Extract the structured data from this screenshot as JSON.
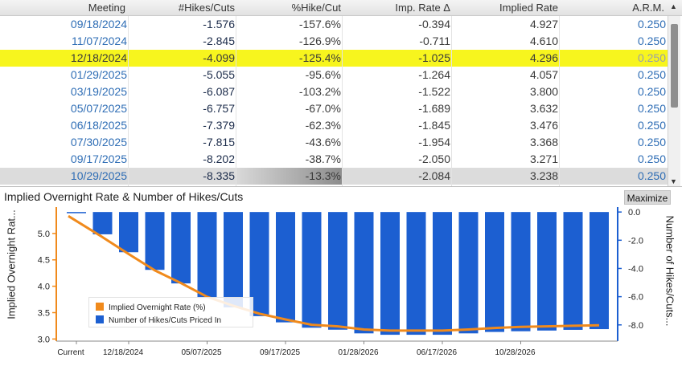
{
  "table": {
    "columns": [
      "Meeting",
      "#Hikes/Cuts",
      "%Hike/Cut",
      "Imp. Rate Δ",
      "Implied Rate",
      "A.R.M."
    ],
    "rows": [
      {
        "meeting": "09/18/2024",
        "hikes": "-1.576",
        "pct": "-157.6%",
        "imp": "-0.394",
        "rate": "4.927",
        "arm": "0.250"
      },
      {
        "meeting": "11/07/2024",
        "hikes": "-2.845",
        "pct": "-126.9%",
        "imp": "-0.711",
        "rate": "4.610",
        "arm": "0.250"
      },
      {
        "meeting": "12/18/2024",
        "hikes": "-4.099",
        "pct": "-125.4%",
        "imp": "-1.025",
        "rate": "4.296",
        "arm": "0.250"
      },
      {
        "meeting": "01/29/2025",
        "hikes": "-5.055",
        "pct": "-95.6%",
        "imp": "-1.264",
        "rate": "4.057",
        "arm": "0.250"
      },
      {
        "meeting": "03/19/2025",
        "hikes": "-6.087",
        "pct": "-103.2%",
        "imp": "-1.522",
        "rate": "3.800",
        "arm": "0.250"
      },
      {
        "meeting": "05/07/2025",
        "hikes": "-6.757",
        "pct": "-67.0%",
        "imp": "-1.689",
        "rate": "3.632",
        "arm": "0.250"
      },
      {
        "meeting": "06/18/2025",
        "hikes": "-7.379",
        "pct": "-62.3%",
        "imp": "-1.845",
        "rate": "3.476",
        "arm": "0.250"
      },
      {
        "meeting": "07/30/2025",
        "hikes": "-7.815",
        "pct": "-43.6%",
        "imp": "-1.954",
        "rate": "3.368",
        "arm": "0.250"
      },
      {
        "meeting": "09/17/2025",
        "hikes": "-8.202",
        "pct": "-38.7%",
        "imp": "-2.050",
        "rate": "3.271",
        "arm": "0.250"
      },
      {
        "meeting": "10/29/2025",
        "hikes": "-8.335",
        "pct": "-13.3%",
        "imp": "-2.084",
        "rate": "3.238",
        "arm": "0.250"
      }
    ],
    "highlighted_meeting": "12/18/2024",
    "selected_meeting": "10/29/2025"
  },
  "chart": {
    "title": "Implied Overnight Rate & Number of Hikes/Cuts",
    "maximize_label": "Maximize",
    "left_axis_label": "Implied Overnight Rat...",
    "right_axis_label": "Number of Hikes/Cuts..."
  },
  "colors": {
    "line": "#f08a1c",
    "bars": "#1c5fd1",
    "highlight": "#f7f51e",
    "date_text": "#2e6db5"
  },
  "chart_data": {
    "type": "bar",
    "categories": [
      "Current",
      "",
      "12/18/2024",
      "",
      "",
      "05/07/2025",
      "",
      "",
      "09/17/2025",
      "",
      "",
      "01/28/2026",
      "",
      "",
      "06/17/2026",
      "",
      "",
      "10/28/2026",
      "",
      "",
      ""
    ],
    "x_tick_labels": [
      "Current",
      "12/18/2024",
      "05/07/2025",
      "09/17/2025",
      "01/28/2026",
      "06/17/2026",
      "10/28/2026"
    ],
    "series": [
      {
        "name": "Number of Hikes/Cuts Priced In",
        "axis": "right",
        "type": "bar",
        "values": [
          0.0,
          -1.58,
          -2.85,
          -4.1,
          -5.06,
          -6.09,
          -6.76,
          -7.38,
          -7.82,
          -8.2,
          -8.34,
          -8.6,
          -8.7,
          -8.7,
          -8.7,
          -8.6,
          -8.5,
          -8.45,
          -8.4,
          -8.35,
          -8.3
        ]
      },
      {
        "name": "Implied Overnight Rate (%)",
        "axis": "left",
        "type": "line",
        "values": [
          5.33,
          4.93,
          4.61,
          4.3,
          4.06,
          3.8,
          3.63,
          3.48,
          3.37,
          3.27,
          3.24,
          3.18,
          3.16,
          3.16,
          3.16,
          3.18,
          3.21,
          3.23,
          3.24,
          3.25,
          3.26
        ]
      }
    ],
    "left_axis": {
      "ticks": [
        3.0,
        3.5,
        4.0,
        4.5,
        5.0
      ],
      "range": [
        2.96,
        5.5
      ]
    },
    "right_axis": {
      "ticks": [
        0.0,
        -2.0,
        -4.0,
        -6.0,
        -8.0
      ],
      "range": [
        -9.15,
        0.35
      ]
    },
    "legend": [
      "Implied Overnight Rate (%)",
      "Number of Hikes/Cuts Priced In"
    ],
    "legend_position": "bottom-left",
    "grid": false
  }
}
